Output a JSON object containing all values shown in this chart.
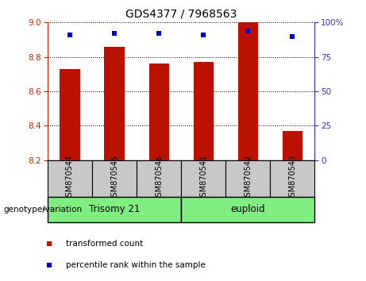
{
  "title": "GDS4377 / 7968563",
  "samples": [
    "GSM870544",
    "GSM870545",
    "GSM870546",
    "GSM870541",
    "GSM870542",
    "GSM870543"
  ],
  "red_values": [
    8.73,
    8.86,
    8.76,
    8.77,
    9.0,
    8.37
  ],
  "blue_values": [
    91,
    92,
    92,
    91,
    94,
    90
  ],
  "ylim_left": [
    8.2,
    9.0
  ],
  "ylim_right": [
    0,
    100
  ],
  "yticks_left": [
    8.2,
    8.4,
    8.6,
    8.8,
    9.0
  ],
  "yticks_right": [
    0,
    25,
    50,
    75,
    100
  ],
  "ytick_labels_right": [
    "0",
    "25",
    "50",
    "75",
    "100%"
  ],
  "bar_color": "#bb1100",
  "square_color": "#0000cc",
  "group_labels": [
    "Trisomy 21",
    "euploid"
  ],
  "genotype_label": "genotype/variation",
  "legend_red": "transformed count",
  "legend_blue": "percentile rank within the sample",
  "tick_label_color_left": "#cc2200",
  "tick_label_color_right": "#3333cc",
  "xlabelbox_color": "#c8c8c8",
  "group_color": "#80ee80",
  "bar_bottom": 8.2,
  "bar_width": 0.45
}
